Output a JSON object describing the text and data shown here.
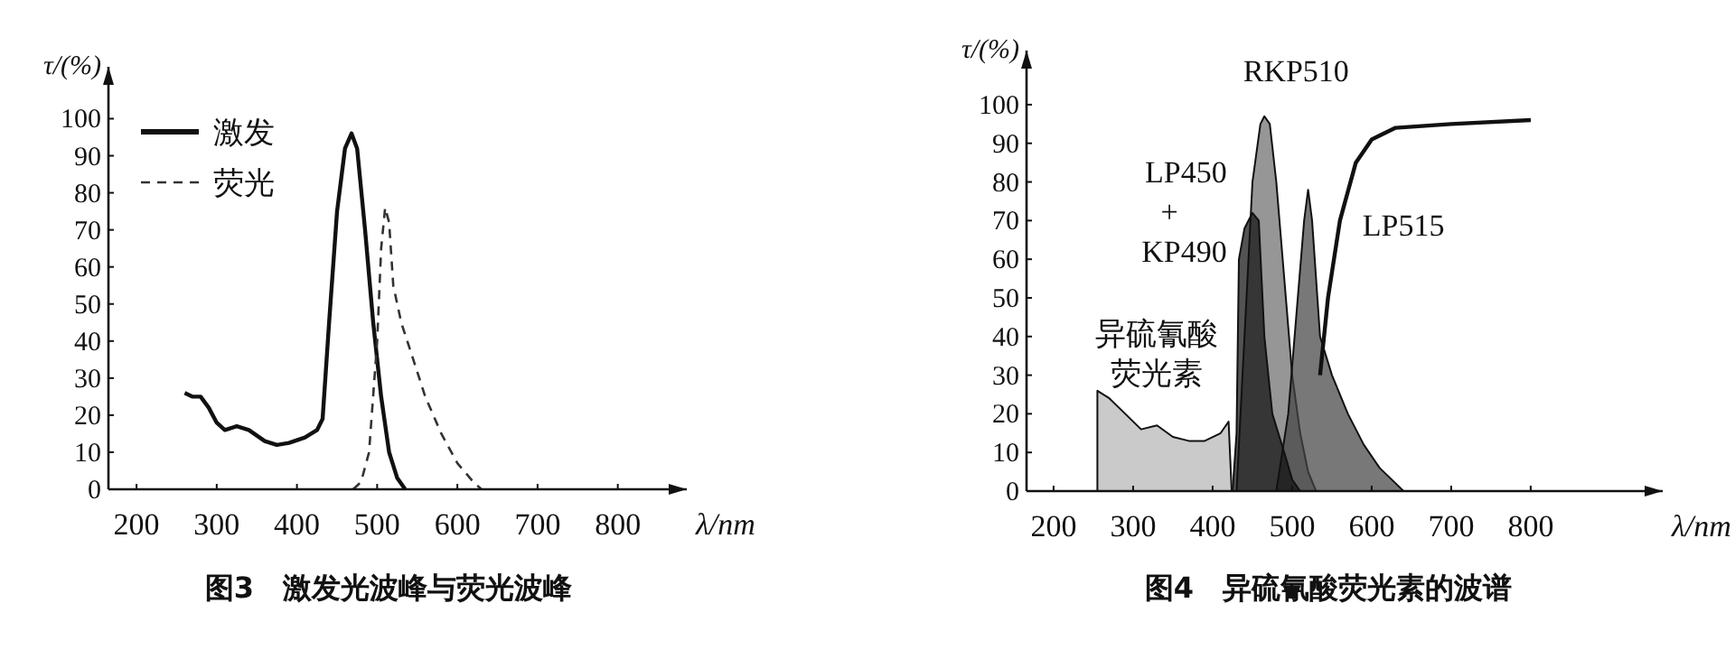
{
  "chart_data": [
    {
      "type": "line",
      "title": "图3　激发光波峰与荧光波峰",
      "xlabel": "λ/nm",
      "ylabel": "τ/(%)",
      "xlim": [
        165,
        886
      ],
      "ylim": [
        0,
        114
      ],
      "xticks": [
        200,
        300,
        400,
        500,
        600,
        700,
        800
      ],
      "yticks": [
        0,
        10,
        20,
        30,
        40,
        50,
        60,
        70,
        80,
        90,
        100
      ],
      "legend": "top left",
      "series": [
        {
          "name": "激发",
          "color": "#111111",
          "line_style": "solid",
          "x": [
            260,
            270,
            280,
            290,
            300,
            310,
            325,
            340,
            360,
            375,
            390,
            410,
            425,
            432,
            440,
            450,
            460,
            468,
            475,
            485,
            495,
            505,
            515,
            525,
            535
          ],
          "values": [
            26,
            25,
            25,
            22,
            18,
            16,
            17,
            16,
            13,
            12,
            12.5,
            14,
            16,
            19,
            45,
            75,
            92,
            96,
            92,
            70,
            45,
            25,
            10,
            3,
            0
          ]
        },
        {
          "name": "荧光",
          "color": "#333333",
          "line_style": "dashed",
          "x": [
            470,
            480,
            490,
            500,
            505,
            510,
            515,
            520,
            530,
            545,
            560,
            580,
            600,
            620,
            630
          ],
          "values": [
            0,
            2,
            10,
            40,
            65,
            76,
            72,
            55,
            45,
            35,
            25,
            15,
            7,
            2,
            0
          ]
        }
      ]
    },
    {
      "type": "area",
      "title": "图4　异硫氰酸荧光素的波谱",
      "xlabel": "λ/nm",
      "ylabel": "τ/(%)",
      "xlim": [
        166,
        966
      ],
      "ylim": [
        0,
        114
      ],
      "xticks": [
        200,
        300,
        400,
        500,
        600,
        700,
        800
      ],
      "yticks": [
        0,
        10,
        20,
        30,
        40,
        50,
        60,
        70,
        80,
        90,
        100
      ],
      "legend": false,
      "series": [
        {
          "name": "异硫氰酸荧光素",
          "color": "#b5b5b5",
          "x": [
            255,
            270,
            290,
            310,
            330,
            350,
            370,
            390,
            410,
            420,
            424
          ],
          "values": [
            26,
            24,
            20,
            16,
            17,
            14,
            13,
            13,
            15,
            18,
            0
          ]
        },
        {
          "name": "RKP510",
          "color": "#6e6e6e",
          "x": [
            430,
            440,
            450,
            460,
            465,
            472,
            480,
            490,
            500,
            510,
            520,
            530
          ],
          "values": [
            0,
            40,
            80,
            95,
            97,
            95,
            80,
            55,
            30,
            15,
            5,
            0
          ]
        },
        {
          "color": "#444444",
          "x": [
            480,
            495,
            505,
            515,
            520,
            525,
            535,
            550,
            570,
            590,
            610,
            630,
            640
          ],
          "values": [
            0,
            20,
            45,
            70,
            78,
            70,
            40,
            30,
            20,
            12,
            6,
            2,
            0
          ]
        },
        {
          "name": "LP450 + KP490",
          "color": "#111111",
          "x": [
            425,
            430,
            433,
            440,
            450,
            458,
            465,
            475,
            490,
            500,
            510
          ],
          "values": [
            0,
            15,
            60,
            68,
            72,
            70,
            40,
            20,
            10,
            3,
            0
          ]
        },
        {
          "name": "LP515",
          "type": "line",
          "color": "#111111",
          "x": [
            535,
            545,
            560,
            580,
            600,
            630,
            700,
            800
          ],
          "values": [
            30,
            50,
            70,
            85,
            91,
            94,
            95,
            96
          ]
        }
      ]
    }
  ]
}
